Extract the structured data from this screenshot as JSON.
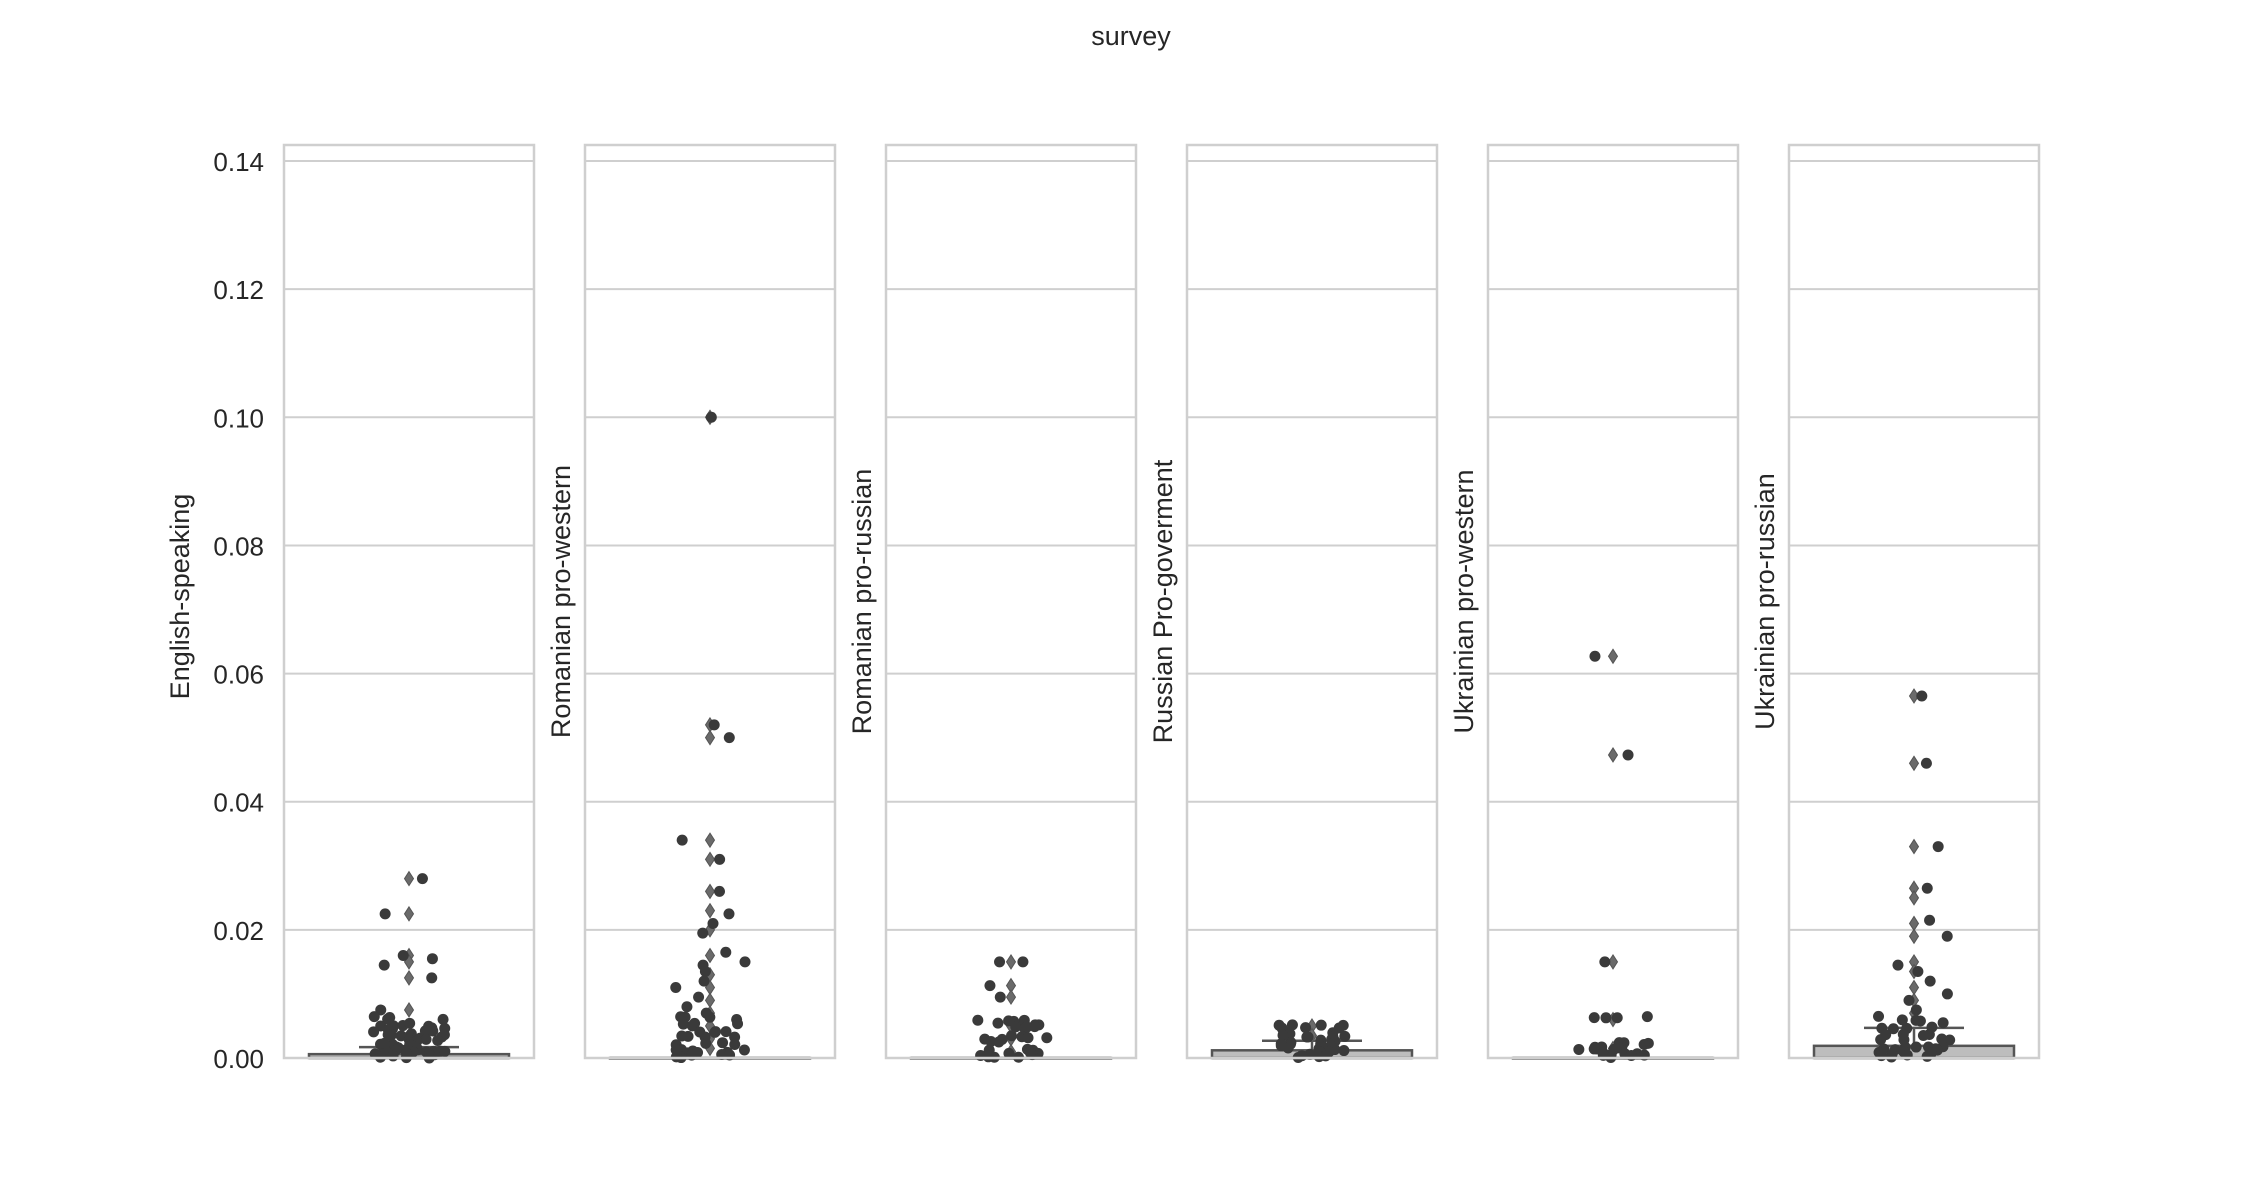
{
  "figure_title": "survey",
  "chart_data": {
    "type": "scatter",
    "subtype": "box-with-strip",
    "title": "survey",
    "ylim": [
      0.0,
      0.14
    ],
    "yticks": [
      "0.00",
      "0.02",
      "0.04",
      "0.06",
      "0.08",
      "0.10",
      "0.12",
      "0.14"
    ],
    "grid": true,
    "colors": {
      "points": "#3a3a3a",
      "box_face": "#bdbdbd",
      "box_edge": "#555555",
      "grid": "#cfcfcf",
      "frame": "#cfcfcf"
    },
    "panels": [
      {
        "ylabel": "English-speaking",
        "box": {
          "q1": 0.0,
          "median": 0.0,
          "q3": 0.0006,
          "whisker_high": 0.0017
        },
        "outliers": [
          0.028,
          0.0225,
          0.016,
          0.015,
          0.0125,
          0.0075
        ],
        "points": [
          0.028,
          0.0225,
          0.016,
          0.0155,
          0.0145,
          0.0125,
          0.0075,
          0.006,
          0.005,
          0.0045,
          0.004,
          0.0035,
          0.003,
          0.0025,
          0.002,
          0.0015,
          0.001,
          0.0008,
          0.0005,
          0.0003,
          0.0
        ]
      },
      {
        "ylabel": "Romanian pro-western",
        "box": {
          "q1": 0.0,
          "median": 0.0,
          "q3": 0.0,
          "whisker_high": 0.0
        },
        "outliers": [
          0.1,
          0.052,
          0.05,
          0.034,
          0.031,
          0.026,
          0.023,
          0.02,
          0.016,
          0.013,
          0.011,
          0.009,
          0.007,
          0.005,
          0.003,
          0.0015
        ],
        "points": [
          0.1,
          0.052,
          0.05,
          0.034,
          0.031,
          0.026,
          0.0225,
          0.021,
          0.0195,
          0.0165,
          0.015,
          0.0145,
          0.0135,
          0.012,
          0.011,
          0.0095,
          0.008,
          0.007,
          0.006,
          0.005,
          0.004,
          0.003,
          0.002,
          0.001,
          0.0005,
          0.0
        ]
      },
      {
        "ylabel": "Romanian pro-russian",
        "box": {
          "q1": 0.0,
          "median": 0.0,
          "q3": 0.0,
          "whisker_high": 0.0
        },
        "outliers": [
          0.015,
          0.0113,
          0.0095,
          0.005,
          0.003,
          0.001
        ],
        "points": [
          0.015,
          0.015,
          0.0113,
          0.0095,
          0.0055,
          0.005,
          0.0045,
          0.003,
          0.0025,
          0.001,
          0.0005,
          0.0
        ]
      },
      {
        "ylabel": "Russian Pro-goverment",
        "box": {
          "q1": 0.0,
          "median": 0.0,
          "q3": 0.0012,
          "whisker_high": 0.0027
        },
        "outliers": [
          0.005,
          0.0035
        ],
        "points": [
          0.0048,
          0.0043,
          0.0035,
          0.003,
          0.0025,
          0.002,
          0.0015,
          0.001,
          0.0005,
          0.0
        ]
      },
      {
        "ylabel": "Ukrainian pro-western",
        "box": {
          "q1": 0.0,
          "median": 0.0,
          "q3": 0.0,
          "whisker_high": 0.0
        },
        "outliers": [
          0.0627,
          0.0473,
          0.015,
          0.006,
          0.0015
        ],
        "points": [
          0.0627,
          0.0473,
          0.015,
          0.006,
          0.002,
          0.0015,
          0.001,
          0.0005,
          0.0
        ]
      },
      {
        "ylabel": "Ukrainian pro-russian",
        "box": {
          "q1": 0.0,
          "median": 0.0,
          "q3": 0.0019,
          "whisker_high": 0.0047
        },
        "outliers": [
          0.0565,
          0.046,
          0.033,
          0.0265,
          0.025,
          0.021,
          0.019,
          0.015,
          0.0135,
          0.011,
          0.009,
          0.007
        ],
        "points": [
          0.0565,
          0.046,
          0.033,
          0.0265,
          0.0215,
          0.019,
          0.0145,
          0.0135,
          0.012,
          0.01,
          0.009,
          0.0075,
          0.0065,
          0.0055,
          0.0045,
          0.0035,
          0.0025,
          0.0015,
          0.001,
          0.0005,
          0.0
        ]
      }
    ]
  }
}
